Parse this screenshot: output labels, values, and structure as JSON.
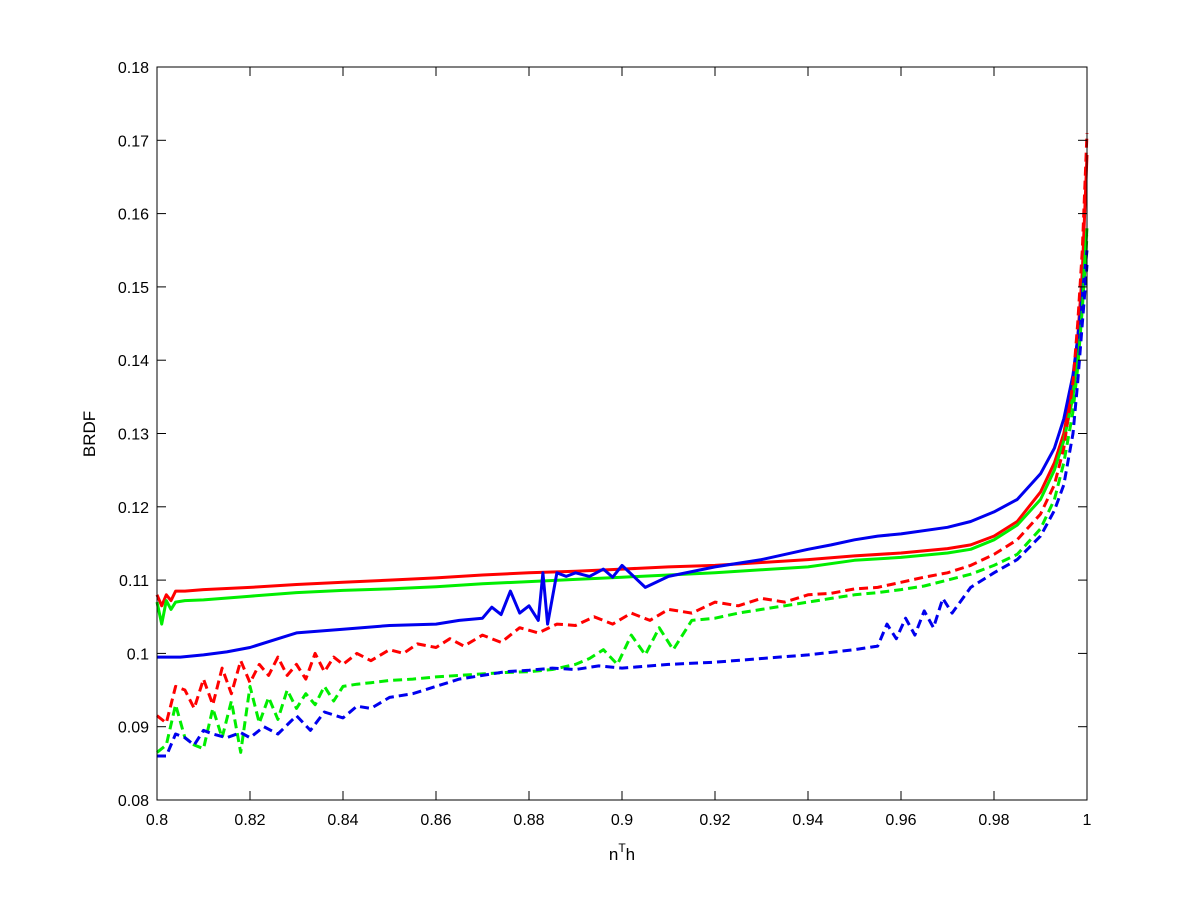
{
  "chart_data": {
    "type": "line",
    "title": "",
    "xlabel": "n",
    "xlabel_superscript": "T",
    "xlabel_suffix": "h",
    "ylabel": "BRDF",
    "xlim": [
      0.8,
      1.0
    ],
    "ylim": [
      0.08,
      0.18
    ],
    "x_ticks": [
      0.8,
      0.82,
      0.84,
      0.86,
      0.88,
      0.9,
      0.92,
      0.94,
      0.96,
      0.98,
      1
    ],
    "x_tick_labels": [
      "0.8",
      "0.82",
      "0.84",
      "0.86",
      "0.88",
      "0.9",
      "0.92",
      "0.94",
      "0.96",
      "0.98",
      "1"
    ],
    "y_ticks": [
      0.08,
      0.09,
      0.1,
      0.11,
      0.12,
      0.13,
      0.14,
      0.15,
      0.16,
      0.17,
      0.18
    ],
    "y_tick_labels": [
      "0.08",
      "0.09",
      "0.1",
      "0.11",
      "0.12",
      "0.13",
      "0.14",
      "0.15",
      "0.16",
      "0.17",
      "0.18"
    ],
    "grid": false,
    "legend": "none",
    "series": [
      {
        "color": "#ff0000",
        "style": "solid",
        "x": [
          0.8,
          0.801,
          0.802,
          0.803,
          0.804,
          0.806,
          0.81,
          0.82,
          0.83,
          0.84,
          0.85,
          0.86,
          0.87,
          0.88,
          0.89,
          0.9,
          0.91,
          0.92,
          0.93,
          0.94,
          0.95,
          0.96,
          0.97,
          0.975,
          0.98,
          0.985,
          0.99,
          0.993,
          0.995,
          0.997,
          0.998,
          0.999,
          1.0
        ],
        "y": [
          0.108,
          0.1065,
          0.108,
          0.1072,
          0.1085,
          0.1085,
          0.1087,
          0.109,
          0.1094,
          0.1097,
          0.11,
          0.1103,
          0.1107,
          0.111,
          0.1112,
          0.1115,
          0.1118,
          0.112,
          0.1124,
          0.1128,
          0.1133,
          0.1137,
          0.1143,
          0.1148,
          0.116,
          0.118,
          0.122,
          0.126,
          0.13,
          0.137,
          0.143,
          0.152,
          0.168
        ]
      },
      {
        "color": "#00ee00",
        "style": "solid",
        "x": [
          0.8,
          0.801,
          0.802,
          0.803,
          0.804,
          0.806,
          0.81,
          0.82,
          0.83,
          0.84,
          0.85,
          0.86,
          0.87,
          0.88,
          0.89,
          0.9,
          0.91,
          0.92,
          0.93,
          0.94,
          0.95,
          0.96,
          0.97,
          0.975,
          0.98,
          0.985,
          0.99,
          0.993,
          0.995,
          0.997,
          0.998,
          0.999,
          1.0
        ],
        "y": [
          0.107,
          0.104,
          0.1072,
          0.106,
          0.107,
          0.1072,
          0.1073,
          0.1078,
          0.1083,
          0.1086,
          0.1088,
          0.1091,
          0.1095,
          0.1098,
          0.1101,
          0.1104,
          0.1107,
          0.111,
          0.1114,
          0.1118,
          0.1127,
          0.1131,
          0.1137,
          0.1142,
          0.1155,
          0.1175,
          0.121,
          0.125,
          0.129,
          0.135,
          0.141,
          0.149,
          0.158
        ]
      },
      {
        "color": "#0000ee",
        "style": "solid",
        "x": [
          0.8,
          0.805,
          0.81,
          0.815,
          0.82,
          0.83,
          0.84,
          0.85,
          0.86,
          0.865,
          0.87,
          0.872,
          0.874,
          0.876,
          0.878,
          0.88,
          0.882,
          0.883,
          0.884,
          0.886,
          0.888,
          0.89,
          0.893,
          0.896,
          0.898,
          0.9,
          0.905,
          0.91,
          0.92,
          0.93,
          0.94,
          0.945,
          0.95,
          0.955,
          0.96,
          0.97,
          0.975,
          0.98,
          0.985,
          0.99,
          0.993,
          0.995,
          0.997,
          0.998,
          0.999,
          1.0
        ],
        "y": [
          0.0995,
          0.0995,
          0.0998,
          0.1002,
          0.1008,
          0.1028,
          0.1033,
          0.1038,
          0.104,
          0.1045,
          0.1048,
          0.1063,
          0.1053,
          0.1085,
          0.1055,
          0.1065,
          0.1045,
          0.111,
          0.104,
          0.111,
          0.1105,
          0.111,
          0.1105,
          0.1115,
          0.1104,
          0.112,
          0.109,
          0.1105,
          0.1118,
          0.1128,
          0.1142,
          0.1148,
          0.1155,
          0.116,
          0.1163,
          0.1172,
          0.118,
          0.1193,
          0.121,
          0.1245,
          0.128,
          0.132,
          0.138,
          0.143,
          0.149,
          0.155
        ]
      },
      {
        "color": "#ff0000",
        "style": "dashed",
        "x": [
          0.8,
          0.802,
          0.804,
          0.806,
          0.808,
          0.81,
          0.812,
          0.814,
          0.816,
          0.818,
          0.82,
          0.822,
          0.824,
          0.826,
          0.828,
          0.83,
          0.832,
          0.834,
          0.836,
          0.838,
          0.84,
          0.843,
          0.846,
          0.85,
          0.853,
          0.856,
          0.86,
          0.863,
          0.866,
          0.87,
          0.874,
          0.878,
          0.882,
          0.886,
          0.89,
          0.894,
          0.898,
          0.902,
          0.906,
          0.91,
          0.915,
          0.92,
          0.925,
          0.93,
          0.935,
          0.94,
          0.945,
          0.95,
          0.955,
          0.96,
          0.965,
          0.97,
          0.975,
          0.98,
          0.985,
          0.99,
          0.993,
          0.995,
          0.997,
          0.998,
          0.999,
          1.0
        ],
        "y": [
          0.0915,
          0.0905,
          0.0955,
          0.095,
          0.0925,
          0.0965,
          0.093,
          0.098,
          0.0945,
          0.099,
          0.096,
          0.0985,
          0.097,
          0.0995,
          0.097,
          0.0985,
          0.0965,
          0.1,
          0.0975,
          0.0995,
          0.0985,
          0.1,
          0.099,
          0.1005,
          0.1,
          0.1013,
          0.1008,
          0.102,
          0.101,
          0.1025,
          0.1015,
          0.1035,
          0.1028,
          0.104,
          0.1038,
          0.105,
          0.104,
          0.1055,
          0.1045,
          0.106,
          0.1055,
          0.107,
          0.1065,
          0.1075,
          0.107,
          0.108,
          0.1082,
          0.1088,
          0.109,
          0.1097,
          0.1104,
          0.111,
          0.112,
          0.1135,
          0.1155,
          0.119,
          0.123,
          0.128,
          0.137,
          0.145,
          0.155,
          0.171
        ]
      },
      {
        "color": "#00ee00",
        "style": "dashed",
        "x": [
          0.8,
          0.802,
          0.804,
          0.806,
          0.808,
          0.81,
          0.812,
          0.814,
          0.816,
          0.818,
          0.82,
          0.822,
          0.824,
          0.826,
          0.828,
          0.83,
          0.832,
          0.834,
          0.836,
          0.838,
          0.84,
          0.843,
          0.846,
          0.85,
          0.855,
          0.86,
          0.865,
          0.87,
          0.875,
          0.88,
          0.885,
          0.89,
          0.893,
          0.896,
          0.899,
          0.902,
          0.905,
          0.908,
          0.911,
          0.915,
          0.92,
          0.925,
          0.93,
          0.935,
          0.94,
          0.945,
          0.95,
          0.955,
          0.96,
          0.965,
          0.97,
          0.975,
          0.98,
          0.985,
          0.99,
          0.993,
          0.995,
          0.997,
          0.998,
          0.999,
          1.0
        ],
        "y": [
          0.0865,
          0.0875,
          0.093,
          0.0885,
          0.0875,
          0.087,
          0.0925,
          0.0885,
          0.0935,
          0.0865,
          0.0955,
          0.0905,
          0.094,
          0.091,
          0.095,
          0.0925,
          0.0945,
          0.093,
          0.0955,
          0.0935,
          0.0955,
          0.0958,
          0.096,
          0.0963,
          0.0965,
          0.0968,
          0.097,
          0.0972,
          0.0974,
          0.0975,
          0.0978,
          0.0985,
          0.0993,
          0.1005,
          0.0985,
          0.1025,
          0.0998,
          0.1035,
          0.1005,
          0.1045,
          0.1048,
          0.1055,
          0.106,
          0.1065,
          0.107,
          0.1075,
          0.108,
          0.1083,
          0.1087,
          0.1092,
          0.11,
          0.1108,
          0.112,
          0.1135,
          0.117,
          0.121,
          0.126,
          0.133,
          0.139,
          0.147,
          0.157
        ]
      },
      {
        "color": "#0000ee",
        "style": "dashed",
        "x": [
          0.8,
          0.802,
          0.804,
          0.806,
          0.808,
          0.81,
          0.812,
          0.815,
          0.818,
          0.82,
          0.823,
          0.826,
          0.83,
          0.833,
          0.836,
          0.84,
          0.843,
          0.846,
          0.85,
          0.855,
          0.86,
          0.865,
          0.87,
          0.875,
          0.88,
          0.885,
          0.89,
          0.895,
          0.9,
          0.91,
          0.92,
          0.93,
          0.94,
          0.95,
          0.955,
          0.957,
          0.959,
          0.961,
          0.963,
          0.965,
          0.967,
          0.969,
          0.971,
          0.975,
          0.98,
          0.985,
          0.99,
          0.993,
          0.995,
          0.997,
          0.998,
          0.999,
          1.0
        ],
        "y": [
          0.086,
          0.086,
          0.089,
          0.0885,
          0.0875,
          0.0895,
          0.089,
          0.0885,
          0.0892,
          0.0885,
          0.09,
          0.089,
          0.0915,
          0.0895,
          0.092,
          0.0912,
          0.0928,
          0.0925,
          0.094,
          0.0945,
          0.0955,
          0.0965,
          0.097,
          0.0975,
          0.0977,
          0.098,
          0.0978,
          0.0983,
          0.098,
          0.0985,
          0.0988,
          0.0993,
          0.0998,
          0.1005,
          0.101,
          0.104,
          0.102,
          0.1048,
          0.1025,
          0.1058,
          0.1035,
          0.1075,
          0.1055,
          0.109,
          0.111,
          0.1128,
          0.116,
          0.1195,
          0.123,
          0.13,
          0.137,
          0.145,
          0.153
        ]
      }
    ]
  }
}
